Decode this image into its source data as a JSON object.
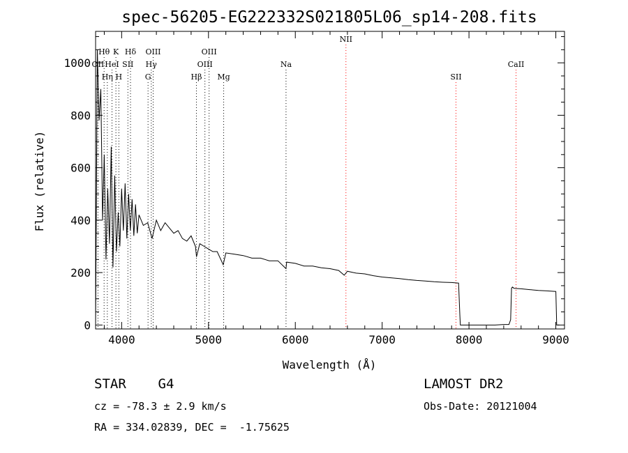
{
  "chart_data": {
    "type": "line",
    "title": "spec-56205-EG222332S021805L06_sp14-208.fits",
    "xlabel": "Wavelength (Å)",
    "ylabel": "Flux (relative)",
    "xlim": [
      3700,
      9100
    ],
    "ylim": [
      -15,
      1120
    ],
    "x_ticks": [
      4000,
      5000,
      6000,
      7000,
      8000,
      9000
    ],
    "x_tick_labels": [
      "4000",
      "5000",
      "6000",
      "7000",
      "8000",
      "9000"
    ],
    "y_ticks": [
      0,
      200,
      400,
      600,
      800,
      1000
    ],
    "y_tick_labels": [
      "0",
      "200",
      "400",
      "600",
      "800",
      "1000"
    ],
    "grid": false,
    "series": [
      {
        "x": [
          3700,
          3720,
          3740,
          3760,
          3780,
          3800,
          3820,
          3840,
          3860,
          3880,
          3900,
          3920,
          3940,
          3960,
          3980,
          4000,
          4020,
          4040,
          4060,
          4080,
          4100,
          4120,
          4140,
          4160,
          4180,
          4200,
          4250,
          4300,
          4350,
          4400,
          4450,
          4500,
          4550,
          4600,
          4650,
          4700,
          4750,
          4800,
          4850,
          4862,
          4900,
          4950,
          5000,
          5050,
          5100,
          5170,
          5200,
          5300,
          5400,
          5500,
          5600,
          5700,
          5800,
          5893,
          5900,
          6000,
          6100,
          6200,
          6300,
          6400,
          6500,
          6563,
          6600,
          6700,
          6800,
          6900,
          7000,
          7100,
          7200,
          7300,
          7400,
          7500,
          7600,
          7700,
          7800,
          7880,
          7895,
          7900,
          7950,
          8000,
          8100,
          8200,
          8300,
          8400,
          8460,
          8480,
          8490,
          8500,
          8520,
          8600,
          8700,
          8800,
          8900,
          9000,
          9010,
          9020,
          9040
        ],
        "values": [
          0,
          1050,
          780,
          900,
          400,
          650,
          250,
          520,
          310,
          680,
          220,
          570,
          280,
          430,
          300,
          520,
          360,
          540,
          330,
          500,
          360,
          480,
          340,
          460,
          350,
          420,
          380,
          390,
          330,
          400,
          360,
          390,
          370,
          350,
          360,
          330,
          320,
          340,
          300,
          260,
          310,
          300,
          290,
          280,
          280,
          230,
          275,
          270,
          265,
          255,
          255,
          245,
          245,
          215,
          240,
          235,
          225,
          225,
          218,
          215,
          208,
          190,
          205,
          198,
          195,
          188,
          183,
          180,
          177,
          173,
          170,
          168,
          165,
          163,
          162,
          160,
          40,
          0,
          0,
          0,
          0,
          0,
          0,
          2,
          2,
          20,
          140,
          145,
          140,
          138,
          135,
          132,
          130,
          128,
          0,
          0,
          0
        ]
      }
    ],
    "lines": [
      {
        "label": "OII",
        "x": 3727,
        "row": 2
      },
      {
        "label": "Hθ",
        "x": 3798,
        "row": 1
      },
      {
        "label": "Hη",
        "x": 3835,
        "row": 3
      },
      {
        "label": "HeI",
        "x": 3889,
        "row": 2
      },
      {
        "label": "K",
        "x": 3934,
        "row": 1
      },
      {
        "label": "H",
        "x": 3968,
        "row": 3
      },
      {
        "label": "SII",
        "x": 4072,
        "row": 2
      },
      {
        "label": "Hδ",
        "x": 4102,
        "row": 1
      },
      {
        "label": "Hγ",
        "x": 4341,
        "row": 2
      },
      {
        "label": "OIII",
        "x": 4363,
        "row": 1
      },
      {
        "label": "G",
        "x": 4304,
        "row": 3
      },
      {
        "label": "Hβ",
        "x": 4861,
        "row": 3
      },
      {
        "label": "OIII",
        "x": 4959,
        "row": 2
      },
      {
        "label": "OIII",
        "x": 5007,
        "row": 1
      },
      {
        "label": "Mg",
        "x": 5175,
        "row": 3
      },
      {
        "label": "Na",
        "x": 5893,
        "row": 2
      },
      {
        "label": "NII",
        "x": 6583,
        "row": 0
      },
      {
        "label": "SII",
        "x": 7850,
        "row": 3
      },
      {
        "label": "CaII",
        "x": 8542,
        "row": 2
      }
    ],
    "line_colors": {
      "dotted_black": "#000000",
      "dotted_red": "#ff0000"
    }
  },
  "footer": {
    "object": "STAR    G4",
    "survey": "LAMOST DR2",
    "cz": "cz = -78.3 ± 2.9 km/s",
    "obs_date": "Obs-Date: 20121004",
    "coords": "RA = 334.02839, DEC =  -1.75625"
  },
  "colors": {
    "foreground": "#000000",
    "background": "#ffffff",
    "red_lines": "#ff0000"
  }
}
